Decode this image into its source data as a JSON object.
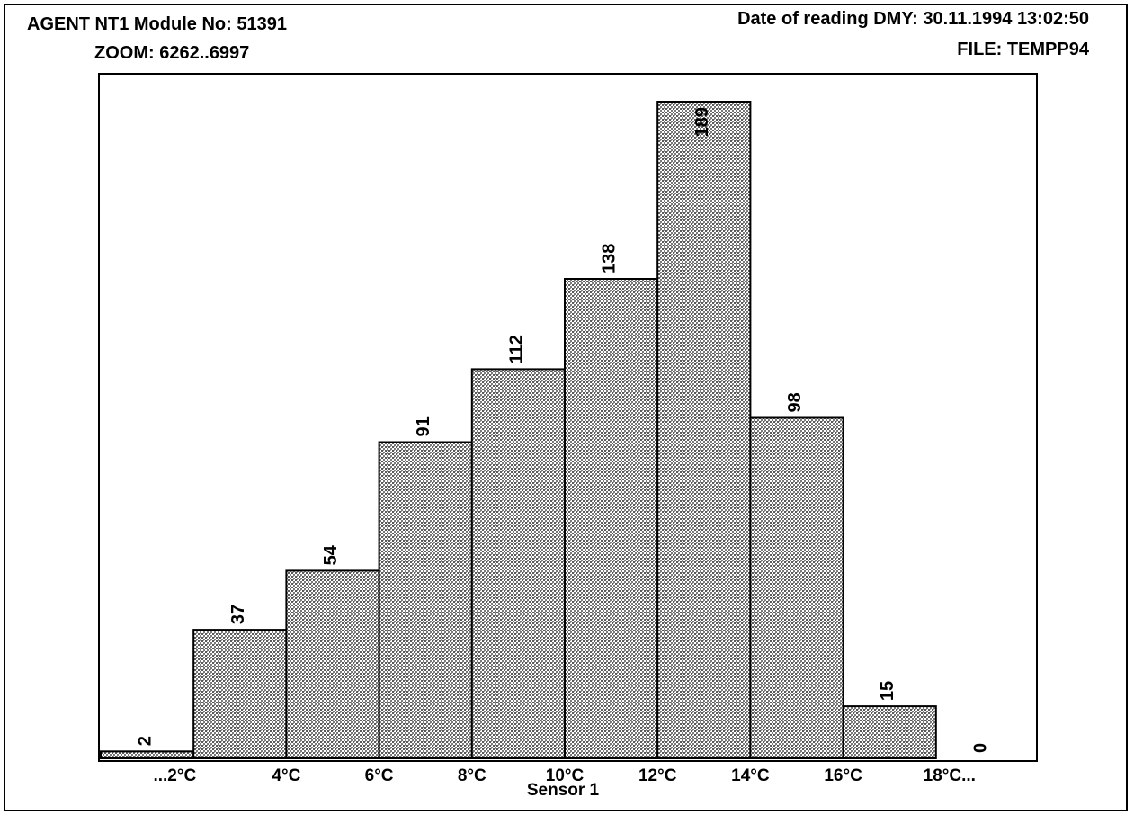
{
  "header": {
    "module": "AGENT NT1 Module No: 51391",
    "zoom": "ZOOM: 6262..6997",
    "date": "Date of reading DMY:  30.11.1994  13:02:50",
    "file": "FILE:   TEMPP94"
  },
  "chart_data": {
    "type": "bar",
    "xlabel": "Sensor  1",
    "ylabel": "",
    "categories": [
      "...2°C",
      "2–4°C",
      "4–6°C",
      "6–8°C",
      "8–10°C",
      "10–12°C",
      "12–14°C",
      "14–16°C",
      "16–18°C",
      "18°C..."
    ],
    "values": [
      2,
      37,
      54,
      91,
      112,
      138,
      189,
      98,
      15,
      0
    ],
    "value_labels": [
      "2",
      "37",
      "54",
      "91",
      "112",
      "138",
      "189",
      "98",
      "15",
      "0"
    ],
    "tick_labels": [
      "...2°C",
      "4°C",
      "6°C",
      "8°C",
      "10°C",
      "12°C",
      "14°C",
      "16°C",
      "18°C..."
    ],
    "ylim": [
      0,
      189
    ],
    "grid": false,
    "bar_fill": "#9a9a9a",
    "bar_stroke": "#000000"
  }
}
